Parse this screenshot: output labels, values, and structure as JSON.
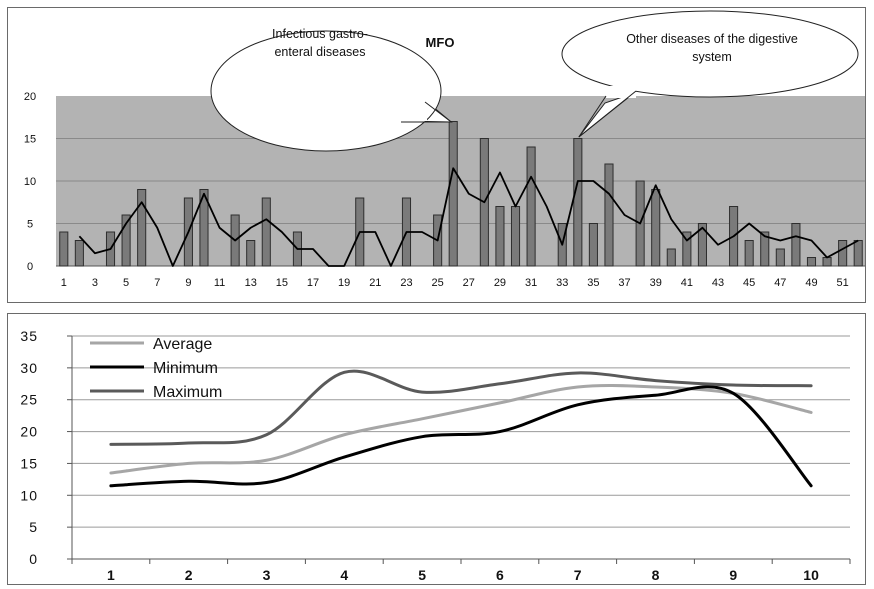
{
  "chart_data": [
    {
      "type": "bar",
      "title": "MFO",
      "xlabel": "",
      "ylabel": "",
      "ylim": [
        0,
        20
      ],
      "yticks": [
        "0",
        "5",
        "10",
        "15",
        "20"
      ],
      "xticks": [
        "1",
        "3",
        "5",
        "7",
        "9",
        "11",
        "13",
        "15",
        "17",
        "19",
        "21",
        "23",
        "25",
        "27",
        "29",
        "31",
        "33",
        "35",
        "37",
        "39",
        "41",
        "43",
        "45",
        "47",
        "49",
        "51"
      ],
      "x": [
        1,
        2,
        3,
        4,
        5,
        6,
        7,
        8,
        9,
        10,
        11,
        12,
        13,
        14,
        15,
        16,
        17,
        18,
        19,
        20,
        21,
        22,
        23,
        24,
        25,
        26,
        27,
        28,
        29,
        30,
        31,
        32,
        33,
        34,
        35,
        36,
        37,
        38,
        39,
        40,
        41,
        42,
        43,
        44,
        45,
        46,
        47,
        48,
        49,
        50,
        51,
        52
      ],
      "values": [
        4,
        3,
        0,
        4,
        6,
        9,
        0,
        0,
        8,
        9,
        0,
        6,
        3,
        8,
        0,
        4,
        0,
        0,
        0,
        8,
        0,
        0,
        8,
        0,
        6,
        17,
        0,
        15,
        7,
        7,
        14,
        0,
        5,
        15,
        5,
        12,
        0,
        10,
        9,
        2,
        4,
        5,
        0,
        7,
        3,
        4,
        2,
        5,
        1,
        1,
        3,
        3
      ],
      "moving_average": [
        null,
        3.5,
        1.5,
        2,
        5,
        7.5,
        4.5,
        0,
        4,
        8.5,
        4.5,
        3,
        4.5,
        5.5,
        4,
        2,
        2,
        0,
        0,
        4,
        4,
        0,
        4,
        4,
        3,
        11.5,
        8.5,
        7.5,
        11,
        7,
        10.5,
        7,
        2.5,
        10,
        10,
        8.5,
        6,
        5,
        9.5,
        5.5,
        3,
        4.5,
        2.5,
        3.5,
        5,
        3.5,
        3,
        3.5,
        3,
        1,
        2,
        3
      ],
      "grid": true,
      "annotations": [
        {
          "text_lines": [
            "Infectious gastro-",
            "enteral diseases"
          ],
          "points_to_x": 26
        },
        {
          "text_lines": [
            "Other diseases of the digestive",
            "system"
          ],
          "points_to_x": 34
        }
      ]
    },
    {
      "type": "line",
      "title": "",
      "xlabel": "",
      "ylabel": "",
      "ylim": [
        0,
        35
      ],
      "yticks": [
        "0",
        "5",
        "10",
        "15",
        "20",
        "25",
        "30",
        "35"
      ],
      "categories": [
        "1",
        "2",
        "3",
        "4",
        "5",
        "6",
        "7",
        "8",
        "9",
        "10"
      ],
      "series": [
        {
          "name": "Average",
          "color": "#a6a6a6",
          "values": [
            13.5,
            15,
            15.5,
            19.5,
            22,
            24.5,
            27,
            27,
            26,
            23
          ]
        },
        {
          "name": "Minimum",
          "color": "#000000",
          "values": [
            11.5,
            12.2,
            12,
            16,
            19.2,
            20,
            24.2,
            25.7,
            26,
            11.5
          ]
        },
        {
          "name": "Maximum",
          "color": "#5a5a5a",
          "values": [
            18,
            18.2,
            19.5,
            29.3,
            26.2,
            27.5,
            29.2,
            28,
            27.3,
            27.2
          ]
        }
      ],
      "legend_position": "top-left",
      "grid": true
    }
  ]
}
